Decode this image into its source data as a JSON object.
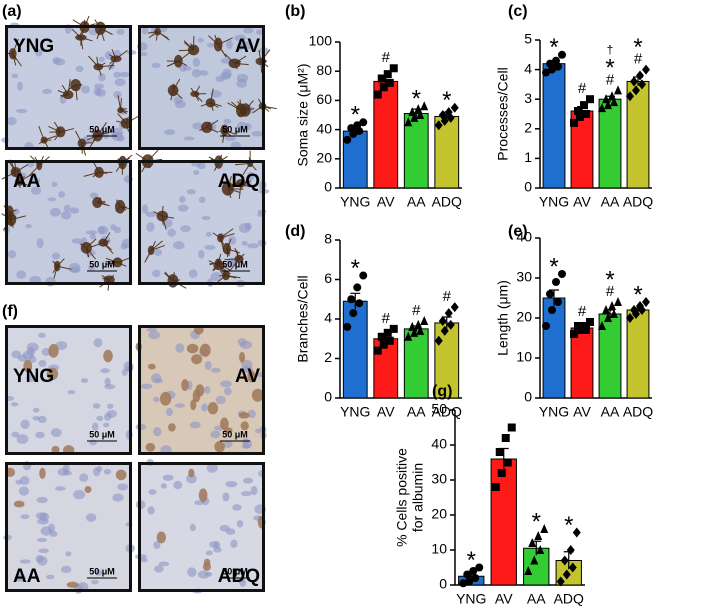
{
  "images": [
    {
      "label": "(a)",
      "tiles": [
        {
          "label": "YNG",
          "scale": "50 μM"
        },
        {
          "label": "AV",
          "scale": "50 μM"
        },
        {
          "label": "AA",
          "scale": "50 μM"
        },
        {
          "label": "ADQ",
          "scale": "50 μM"
        }
      ]
    },
    {
      "label": "(f)",
      "tiles": [
        {
          "label": "YNG",
          "scale": "50 μM"
        },
        {
          "label": "AV",
          "scale": "50 μM"
        },
        {
          "label": "AA",
          "scale": "50 μM"
        },
        {
          "label": "ADQ",
          "scale": "50 μM"
        }
      ]
    }
  ],
  "chart_data": [
    {
      "type": "bar",
      "panel": "(b)",
      "ylabel": [
        "Soma size (μM²)"
      ],
      "categories": [
        "YNG",
        "AV",
        "AA",
        "ADQ"
      ],
      "colors": [
        "#1f6fd0",
        "#ff1a1a",
        "#33cc33",
        "#c4c42e"
      ],
      "markers": [
        "circle",
        "square",
        "triangle",
        "diamond"
      ],
      "values": [
        39,
        73,
        51,
        49
      ],
      "errors": [
        3,
        4,
        3,
        3
      ],
      "points": [
        [
          33,
          37,
          39,
          41,
          43,
          45
        ],
        [
          64,
          69,
          72,
          75,
          78,
          82
        ],
        [
          45,
          48,
          50,
          52,
          54,
          56
        ],
        [
          43,
          46,
          48,
          50,
          52,
          55
        ]
      ],
      "annotations": [
        [
          "*"
        ],
        [
          "#"
        ],
        [
          "*"
        ],
        [
          "*"
        ]
      ],
      "ylim": [
        0,
        100
      ],
      "yticks": [
        0,
        20,
        40,
        60,
        80,
        100
      ]
    },
    {
      "type": "bar",
      "panel": "(c)",
      "ylabel": [
        "Processes/Cell"
      ],
      "categories": [
        "YNG",
        "AV",
        "AA",
        "ADQ"
      ],
      "colors": [
        "#1f6fd0",
        "#ff1a1a",
        "#33cc33",
        "#c4c42e"
      ],
      "markers": [
        "circle",
        "square",
        "triangle",
        "diamond"
      ],
      "values": [
        4.2,
        2.6,
        3.0,
        3.6
      ],
      "errors": [
        0.1,
        0.15,
        0.1,
        0.15
      ],
      "points": [
        [
          3.9,
          4.0,
          4.1,
          4.2,
          4.3,
          4.5
        ],
        [
          2.2,
          2.4,
          2.5,
          2.6,
          2.8,
          3.0
        ],
        [
          2.7,
          2.8,
          2.9,
          3.0,
          3.1,
          3.3
        ],
        [
          3.1,
          3.3,
          3.5,
          3.6,
          3.8,
          4.0
        ]
      ],
      "annotations": [
        [
          "*"
        ],
        [
          "#"
        ],
        [
          "†",
          "*",
          "#"
        ],
        [
          "*",
          "#"
        ]
      ],
      "ylim": [
        0,
        5
      ],
      "yticks": [
        0,
        1,
        2,
        3,
        4,
        5
      ]
    },
    {
      "type": "bar",
      "panel": "(d)",
      "ylabel": [
        "Branches/Cell"
      ],
      "categories": [
        "YNG",
        "AV",
        "AA",
        "ADQ"
      ],
      "colors": [
        "#1f6fd0",
        "#ff1a1a",
        "#33cc33",
        "#c4c42e"
      ],
      "markers": [
        "circle",
        "square",
        "triangle",
        "diamond"
      ],
      "values": [
        4.9,
        3.0,
        3.5,
        3.8
      ],
      "errors": [
        0.4,
        0.2,
        0.15,
        0.3
      ],
      "points": [
        [
          3.6,
          4.3,
          4.8,
          5.0,
          5.6,
          6.2
        ],
        [
          2.4,
          2.7,
          2.9,
          3.1,
          3.3,
          3.5
        ],
        [
          3.1,
          3.3,
          3.4,
          3.6,
          3.7,
          3.9
        ],
        [
          2.9,
          3.4,
          3.7,
          3.9,
          4.3,
          4.6
        ]
      ],
      "annotations": [
        [
          "*"
        ],
        [
          "#"
        ],
        [
          "#"
        ],
        [
          "#"
        ]
      ],
      "ylim": [
        0,
        8
      ],
      "yticks": [
        0,
        2,
        4,
        6,
        8
      ]
    },
    {
      "type": "bar",
      "panel": "(e)",
      "ylabel": [
        "Length (μm)"
      ],
      "categories": [
        "YNG",
        "AV",
        "AA",
        "ADQ"
      ],
      "colors": [
        "#1f6fd0",
        "#ff1a1a",
        "#33cc33",
        "#c4c42e"
      ],
      "markers": [
        "circle",
        "square",
        "triangle",
        "diamond"
      ],
      "values": [
        25,
        17.5,
        21,
        22
      ],
      "errors": [
        2,
        0.5,
        1,
        0.5
      ],
      "points": [
        [
          18,
          22,
          24,
          26,
          29,
          31
        ],
        [
          16,
          17,
          17,
          18,
          18,
          19
        ],
        [
          18,
          20,
          21,
          22,
          23,
          24
        ],
        [
          20,
          21,
          22,
          22,
          23,
          24
        ]
      ],
      "annotations": [
        [
          "*"
        ],
        [
          "#"
        ],
        [
          "*",
          "#"
        ],
        [
          "*"
        ]
      ],
      "ylim": [
        0,
        40
      ],
      "yticks": [
        0,
        10,
        20,
        30,
        40
      ]
    },
    {
      "type": "bar",
      "panel": "(g)",
      "ylabel": [
        "% Cells positive",
        "for albumin"
      ],
      "categories": [
        "YNG",
        "AV",
        "AA",
        "ADQ"
      ],
      "colors": [
        "#1f6fd0",
        "#ff1a1a",
        "#33cc33",
        "#c4c42e"
      ],
      "markers": [
        "circle",
        "square",
        "triangle",
        "diamond"
      ],
      "values": [
        2.5,
        36,
        10.5,
        7
      ],
      "errors": [
        1,
        3,
        2,
        2.5
      ],
      "points": [
        [
          0.5,
          1,
          2,
          3,
          4,
          5
        ],
        [
          28,
          32,
          35,
          38,
          42,
          45
        ],
        [
          4,
          7,
          10,
          12,
          14,
          16
        ],
        [
          1,
          3,
          5,
          7,
          10,
          15
        ]
      ],
      "annotations": [
        [
          "*"
        ],
        [],
        [
          "*"
        ],
        [
          "*"
        ]
      ],
      "ylim": [
        0,
        50
      ],
      "yticks": [
        0,
        10,
        20,
        30,
        40,
        50
      ]
    }
  ]
}
